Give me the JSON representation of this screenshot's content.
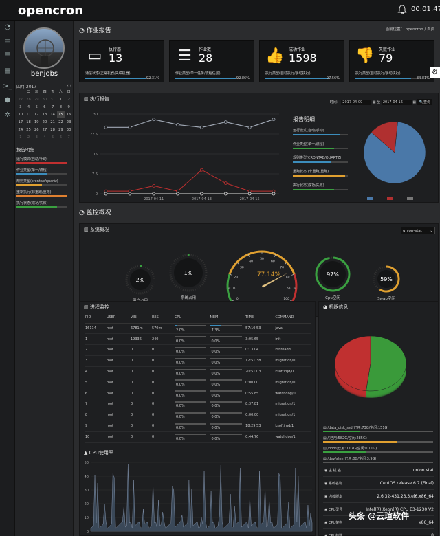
{
  "header": {
    "logo": "opencron",
    "clock": "00:01:47"
  },
  "sidebar": {
    "username": "benjobs",
    "calendar": {
      "month": "四月 2017",
      "weekdays": [
        "一",
        "二",
        "三",
        "四",
        "五",
        "六",
        "日"
      ],
      "rows": [
        [
          "27",
          "28",
          "29",
          "30",
          "31",
          "1",
          "2"
        ],
        [
          "3",
          "4",
          "5",
          "6",
          "7",
          "8",
          "9"
        ],
        [
          "10",
          "11",
          "12",
          "13",
          "14",
          "15",
          "16"
        ],
        [
          "17",
          "18",
          "19",
          "20",
          "21",
          "22",
          "23"
        ],
        [
          "24",
          "25",
          "26",
          "27",
          "28",
          "29",
          "30"
        ],
        [
          "1",
          "2",
          "3",
          "4",
          "5",
          "6",
          "7"
        ]
      ]
    },
    "report_title": "报告明细",
    "report_items": [
      "运行模式(自动/手动)",
      "作业类型(单一/流程)",
      "规则类型(crontab/quartz)",
      "重新执行(非重跑/重跑)",
      "执行状态(成功/失败)"
    ],
    "report_colors": [
      "#c03030",
      "#3c8dbc",
      "#e0a030",
      "#e08030",
      "#3aa040"
    ]
  },
  "main": {
    "job_report_title": "作业报告",
    "breadcrumb": {
      "prefix": "当前位置：",
      "item1": "opencron",
      "sep": "/",
      "item2": "首页"
    },
    "cards": [
      {
        "label": "执行器",
        "value": "13",
        "sub": "通信状态(正常机器/失联机器)",
        "pct": "92.31%",
        "fill": 0.9231
      },
      {
        "label": "作业数",
        "value": "28",
        "sub": "作业类型(单一任务/流程任务)",
        "pct": "92.86%",
        "fill": 0.9286
      },
      {
        "label": "成功作业",
        "value": "1598",
        "sub": "执行类型(自动执行/手动执行)",
        "pct": "97.56%",
        "fill": 0.9756
      },
      {
        "label": "失败作业",
        "value": "79",
        "sub": "执行类型(自动执行/手动执行)",
        "pct": "84.81%",
        "fill": 0.8481
      }
    ],
    "exec_report": {
      "title": "执行报告",
      "time_label": "时间：",
      "date_from": "2017-04-09",
      "date_sep": "至",
      "date_to": "2017-04-16",
      "query": "查询",
      "detail_title": "报告明细",
      "detail_items": [
        "运行模式(自动/手动)",
        "作业类型(单一/流程)",
        "规则类型(CRONTAB/QUARTZ)",
        "重跑状态 (非重跑/重跑)",
        "执行状态(成功/失败)"
      ]
    },
    "monitor_title": "监控概况",
    "sys_overview": {
      "title": "系统概况",
      "host_select": "union-stat"
    },
    "gauges": {
      "cpu_user": {
        "value": "2%",
        "label": "用户占用",
        "frac": 0.02
      },
      "cpu_sys": {
        "value": "1%",
        "label": "系统占用",
        "frac": 0.01
      },
      "mem": {
        "value": "77.14%",
        "label": "内存使用率",
        "frac": 0.7714,
        "ticks": [
          "0",
          "10",
          "20",
          "30",
          "40",
          "50",
          "60",
          "70",
          "80",
          "90",
          "100"
        ]
      },
      "cpu_free": {
        "value": "97%",
        "label": "Cpu空闲",
        "frac": 0.97
      },
      "swap": {
        "value": "59%",
        "label": "Swap空闲",
        "frac": 0.59
      }
    },
    "process": {
      "title": "进程监控",
      "headers": [
        "PID",
        "USER",
        "VIRI",
        "RES",
        "CPU",
        "MEM",
        "TIME",
        "COMMAND"
      ],
      "rows": [
        [
          "16114",
          "root",
          "6781m",
          "570m",
          "2.0%",
          "7.3%",
          "57:10.53",
          "java"
        ],
        [
          "1",
          "root",
          "19336",
          "240",
          "0.0%",
          "0.0%",
          "3:05.65",
          "init"
        ],
        [
          "2",
          "root",
          "0",
          "0",
          "0.0%",
          "0.0%",
          "0:13.04",
          "kthreadd"
        ],
        [
          "3",
          "root",
          "0",
          "0",
          "0.0%",
          "0.0%",
          "12:51.38",
          "migration/0"
        ],
        [
          "4",
          "root",
          "0",
          "0",
          "0.0%",
          "0.0%",
          "20:51.03",
          "ksoftirqd/0"
        ],
        [
          "5",
          "root",
          "0",
          "0",
          "0.0%",
          "0.0%",
          "0:00.00",
          "migration/0"
        ],
        [
          "6",
          "root",
          "0",
          "0",
          "0.0%",
          "0.0%",
          "0:55.85",
          "watchdog/0"
        ],
        [
          "7",
          "root",
          "0",
          "0",
          "0.0%",
          "0.0%",
          "8:37.81",
          "migration/1"
        ],
        [
          "8",
          "root",
          "0",
          "0",
          "0.0%",
          "0.0%",
          "0:00.00",
          "migration/1"
        ],
        [
          "9",
          "root",
          "0",
          "0",
          "0.0%",
          "0.0%",
          "18:29.53",
          "ksoftirqd/1"
        ],
        [
          "10",
          "root",
          "0",
          "0",
          "0.0%",
          "0.0%",
          "0:44.76",
          "watchdog/1"
        ]
      ]
    },
    "cpu_usage": {
      "title": "CPU使用率"
    },
    "machine": {
      "title": "机器信息",
      "disks": [
        {
          "name": "/data_disk_ssd",
          "usage": "(已用:73G/空闲:151G)",
          "frac": 0.33
        },
        {
          "name": "/",
          "usage": "(已用:582G/空闲:285G)",
          "frac": 0.67
        },
        {
          "name": "/boot",
          "usage": "(已用:0.07G/空闲:0.11G)",
          "frac": 0.39
        },
        {
          "name": "/dev/shm",
          "usage": "(已用:0G/空闲:3.9G)",
          "frac": 0.0
        }
      ],
      "info": [
        {
          "k": "主 机 名",
          "v": "union.stat"
        },
        {
          "k": "系统名称",
          "v": "CentOS release 6.7 (Final)"
        },
        {
          "k": "内核版本",
          "v": "2.6.32-431.23.3.el6.x86_64"
        },
        {
          "k": "CPU型号",
          "v": "Intel(R) Xeon(R) CPU E3-1230 V2"
        },
        {
          "k": "CPU架构",
          "v": "x86_64"
        },
        {
          "k": "CPU核数",
          "v": "8"
        },
        {
          "k": "CPU频率",
          "v": ""
        }
      ]
    },
    "watermark": "头条 @云瑄软件"
  },
  "chart_data": [
    {
      "type": "line",
      "x": [
        "2017-04-09",
        "2017-04-10",
        "2017-04-11",
        "2017-04-12",
        "2017-04-13",
        "2017-04-14",
        "2017-04-15",
        "2017-04-16"
      ],
      "xticks": [
        "2017-04-11",
        "2017-04-13",
        "2017-04-15"
      ],
      "yticks": [
        "0",
        "7.5",
        "15",
        "22.5",
        "30"
      ],
      "ylim": [
        0,
        30
      ],
      "series": [
        {
          "values": [
            25,
            25,
            28,
            26,
            25,
            27,
            25,
            28
          ],
          "color": "#a0a8b4"
        },
        {
          "values": [
            1,
            1,
            3,
            1,
            9,
            4,
            1,
            1
          ],
          "color": "#c03030"
        },
        {
          "values": [
            0,
            0,
            0,
            0,
            0,
            0,
            0,
            0
          ],
          "color": "#e0e0e0"
        }
      ]
    },
    {
      "type": "pie",
      "values": [
        84.81,
        15.19
      ],
      "colors": [
        "#4a78a8",
        "#b03030"
      ],
      "legend_colors": [
        "#4a78a8",
        "#b03030",
        "#777"
      ]
    },
    {
      "type": "pie",
      "values": [
        52,
        48
      ],
      "colors": [
        "#3a9a3a",
        "#c03030"
      ]
    },
    {
      "type": "area",
      "yticks": [
        "0",
        "10",
        "20",
        "30",
        "40",
        "50"
      ],
      "ylim": [
        0,
        50
      ]
    }
  ]
}
